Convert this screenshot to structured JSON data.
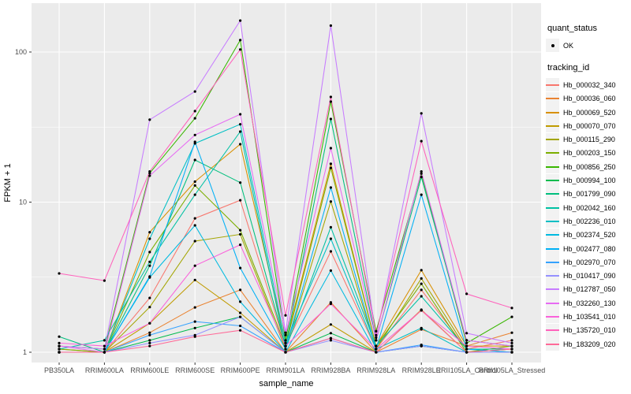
{
  "style": {
    "background": "#FFFFFF",
    "panel_bg": "#EBEBEB",
    "grid_color": "#FFFFFF",
    "axis_text_color": "#4D4D4D",
    "axis_title_color": "#000000",
    "legend_key_bg": "#F2F2F2",
    "point_color": "#000000"
  },
  "legend": {
    "quant_status_title": "quant_status",
    "quant_status_items": [
      {
        "label": "OK",
        "symbol": "black-point"
      }
    ],
    "tracking_id_title": "tracking_id"
  },
  "chart_data": {
    "type": "line",
    "title": "",
    "xlabel": "sample_name",
    "ylabel": "FPKM + 1",
    "y_scale": "log10",
    "y_major_ticks": [
      1,
      10,
      100
    ],
    "y_minor_ticks": [
      3.162,
      31.62
    ],
    "ylim": [
      0.85,
      211
    ],
    "grid": true,
    "legend_position": "right",
    "point_shape": "filled-circle",
    "categories": [
      "PB350LA",
      "RRIM600LA",
      "RRIM600LE",
      "RRIM600SE",
      "RRIM600PE",
      "RRIM901LA",
      "RRIM928BA",
      "RRIM928LA",
      "RRIM928LE",
      "RRII105LA_Control",
      "RRII105LA_Stressed"
    ],
    "series": [
      {
        "name": "Hb_000032_340",
        "color": "#F8766D",
        "values": [
          1.0,
          1.0,
          2.3,
          7.8,
          10.3,
          1.1,
          4.7,
          1.05,
          2.6,
          1.05,
          1.2
        ]
      },
      {
        "name": "Hb_000036_060",
        "color": "#EA8331",
        "values": [
          1.0,
          1.0,
          1.35,
          1.99,
          2.6,
          1.0,
          2.15,
          1.0,
          1.42,
          1.1,
          1.35
        ]
      },
      {
        "name": "Hb_000069_520",
        "color": "#D89000",
        "values": [
          1.05,
          1.0,
          6.3,
          13.7,
          24.3,
          1.15,
          18.0,
          1.1,
          3.52,
          1.1,
          1.1
        ]
      },
      {
        "name": "Hb_000070_070",
        "color": "#C09B00",
        "values": [
          1.0,
          1.0,
          1.56,
          3.03,
          1.83,
          1.0,
          1.53,
          1.0,
          1.92,
          1.0,
          1.05
        ]
      },
      {
        "name": "Hb_000115_290",
        "color": "#A3A500",
        "values": [
          1.0,
          1.0,
          2.0,
          5.5,
          6.1,
          1.05,
          10.1,
          1.05,
          3.1,
          1.05,
          1.0
        ]
      },
      {
        "name": "Hb_000203_150",
        "color": "#7CAE00",
        "values": [
          1.05,
          1.0,
          4.65,
          12.9,
          6.5,
          1.1,
          16.9,
          1.1,
          2.86,
          1.0,
          1.1
        ]
      },
      {
        "name": "Hb_000856_250",
        "color": "#39B600",
        "values": [
          1.1,
          1.05,
          15.6,
          36.2,
          120.0,
          1.2,
          46.7,
          1.38,
          15.5,
          1.15,
          1.72
        ]
      },
      {
        "name": "Hb_000994_100",
        "color": "#00BB4E",
        "values": [
          1.0,
          1.0,
          1.2,
          1.45,
          1.72,
          1.0,
          1.34,
          1.0,
          1.1,
          1.0,
          1.0
        ]
      },
      {
        "name": "Hb_001799_090",
        "color": "#00BF7D",
        "values": [
          1.27,
          1.0,
          3.77,
          19.1,
          13.5,
          1.1,
          35.8,
          1.2,
          14.7,
          1.2,
          1.1
        ]
      },
      {
        "name": "Hb_002042_160",
        "color": "#00C1A3",
        "values": [
          1.05,
          1.2,
          4.0,
          11.2,
          29.5,
          1.05,
          6.8,
          1.1,
          2.36,
          1.05,
          1.05
        ]
      },
      {
        "name": "Hb_002236_010",
        "color": "#00BFC4",
        "values": [
          1.0,
          1.0,
          5.7,
          24.6,
          33.0,
          1.15,
          5.7,
          1.05,
          1.45,
          1.0,
          1.0
        ]
      },
      {
        "name": "Hb_002374_520",
        "color": "#00BAE0",
        "values": [
          1.0,
          1.0,
          3.15,
          7.0,
          2.17,
          1.0,
          3.5,
          1.0,
          1.1,
          1.0,
          1.0
        ]
      },
      {
        "name": "Hb_002477_080",
        "color": "#00B0F6",
        "values": [
          1.0,
          1.0,
          3.2,
          25.2,
          3.64,
          1.05,
          12.5,
          1.05,
          11.2,
          1.05,
          1.0
        ]
      },
      {
        "name": "Hb_002970_070",
        "color": "#35A2FF",
        "values": [
          1.0,
          1.0,
          1.3,
          1.6,
          1.5,
          1.0,
          1.24,
          1.0,
          1.12,
          1.0,
          1.0
        ]
      },
      {
        "name": "Hb_010417_090",
        "color": "#9590FF",
        "values": [
          1.0,
          1.0,
          1.15,
          1.3,
          1.72,
          1.0,
          1.2,
          1.0,
          1.1,
          1.0,
          1.0
        ]
      },
      {
        "name": "Hb_012787_050",
        "color": "#C77CFF",
        "values": [
          1.1,
          1.05,
          35.4,
          54.6,
          162.0,
          1.35,
          150.0,
          1.25,
          39.0,
          1.34,
          1.15
        ]
      },
      {
        "name": "Hb_032260_130",
        "color": "#E76BF3",
        "values": [
          1.1,
          1.0,
          15.0,
          28.0,
          38.5,
          1.3,
          22.9,
          1.2,
          16.0,
          1.2,
          1.1
        ]
      },
      {
        "name": "Hb_103541_010",
        "color": "#FA62DB",
        "values": [
          1.15,
          1.1,
          1.56,
          3.77,
          5.2,
          1.1,
          2.1,
          1.05,
          1.9,
          1.1,
          1.05
        ]
      },
      {
        "name": "Hb_135720_010",
        "color": "#FF62BC",
        "values": [
          3.35,
          3.0,
          16.0,
          40.4,
          104.0,
          1.76,
          50.2,
          1.3,
          25.5,
          2.45,
          1.97
        ]
      },
      {
        "name": "Hb_183209_020",
        "color": "#FF6A98",
        "values": [
          1.0,
          1.0,
          1.1,
          1.27,
          1.4,
          1.0,
          1.24,
          1.0,
          1.9,
          1.0,
          1.05
        ]
      }
    ]
  }
}
